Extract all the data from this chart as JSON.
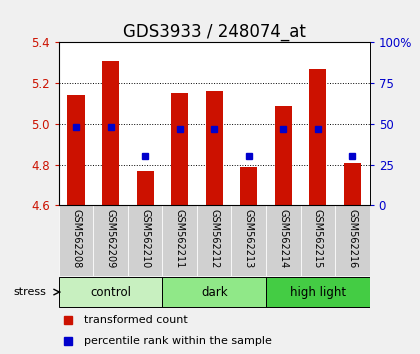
{
  "title": "GDS3933 / 248074_at",
  "samples": [
    "GSM562208",
    "GSM562209",
    "GSM562210",
    "GSM562211",
    "GSM562212",
    "GSM562213",
    "GSM562214",
    "GSM562215",
    "GSM562216"
  ],
  "bar_tops": [
    5.14,
    5.31,
    4.77,
    5.15,
    5.16,
    4.79,
    5.09,
    5.27,
    4.81
  ],
  "bar_base": 4.6,
  "percentile_vals": [
    48,
    48,
    30,
    47,
    47,
    30,
    47,
    47,
    30
  ],
  "ylim": [
    4.6,
    5.4
  ],
  "yticks_left": [
    4.6,
    4.8,
    5.0,
    5.2,
    5.4
  ],
  "yticks_right": [
    0,
    25,
    50,
    75,
    100
  ],
  "groups": [
    {
      "label": "control",
      "start": 0,
      "end": 3,
      "color": "#c8f0c0"
    },
    {
      "label": "dark",
      "start": 3,
      "end": 6,
      "color": "#90e888"
    },
    {
      "label": "high light",
      "start": 6,
      "end": 9,
      "color": "#44cc44"
    }
  ],
  "bar_color": "#cc1100",
  "blue_color": "#0000cc",
  "left_axis_color": "#cc1100",
  "right_axis_color": "#0000cc",
  "bg_color": "#f0f0f0",
  "plot_bg": "#ffffff",
  "sample_box_color": "#d0d0d0",
  "stress_label": "stress",
  "legend_red": "transformed count",
  "legend_blue": "percentile rank within the sample",
  "title_fontsize": 12,
  "tick_fontsize": 8.5,
  "sample_fontsize": 7.0,
  "group_fontsize": 8.5,
  "legend_fontsize": 8.0
}
